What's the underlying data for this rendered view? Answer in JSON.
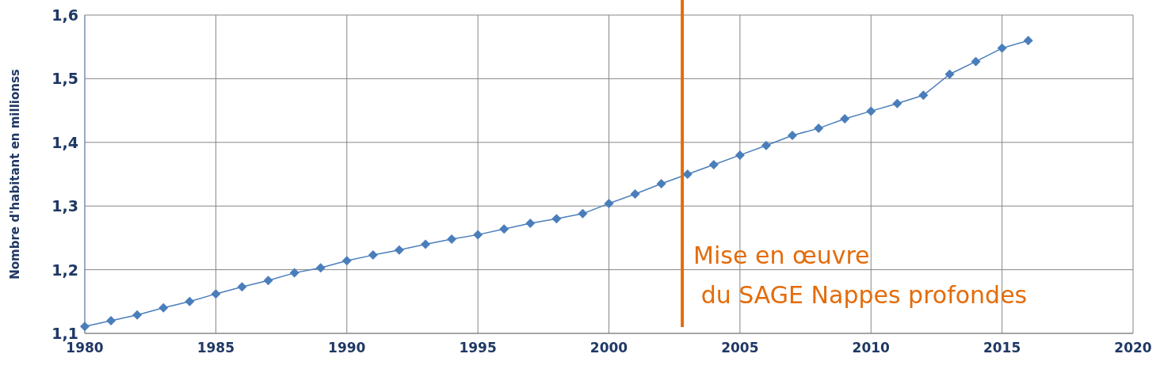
{
  "chart_data": {
    "type": "line",
    "ylabel": "Nombre d'habitant en millionss",
    "x": [
      1980,
      1981,
      1982,
      1983,
      1984,
      1985,
      1986,
      1987,
      1988,
      1989,
      1990,
      1991,
      1992,
      1993,
      1994,
      1995,
      1996,
      1997,
      1998,
      1999,
      2000,
      2001,
      2002,
      2003,
      2004,
      2005,
      2006,
      2007,
      2008,
      2009,
      2010,
      2011,
      2012,
      2013,
      2014,
      2015,
      2016
    ],
    "series": [
      {
        "color": "#4a7ebb",
        "values": [
          1.111,
          1.12,
          1.129,
          1.14,
          1.15,
          1.162,
          1.173,
          1.183,
          1.195,
          1.203,
          1.214,
          1.223,
          1.231,
          1.24,
          1.248,
          1.255,
          1.264,
          1.273,
          1.28,
          1.288,
          1.304,
          1.319,
          1.335,
          1.35,
          1.365,
          1.38,
          1.395,
          1.411,
          1.422,
          1.437,
          1.449,
          1.461,
          1.474,
          1.507,
          1.527,
          1.548,
          1.56
        ]
      }
    ],
    "xlim": [
      1980,
      2020
    ],
    "xticks": [
      1980,
      1985,
      1990,
      1995,
      2000,
      2005,
      2010,
      2015,
      2020
    ],
    "ylim": [
      1.1,
      1.6
    ],
    "yticks": [
      {
        "value": 1.1,
        "label": "1,1"
      },
      {
        "value": 1.2,
        "label": "1,2"
      },
      {
        "value": 1.3,
        "label": "1,3"
      },
      {
        "value": 1.4,
        "label": "1,4"
      },
      {
        "value": 1.5,
        "label": "1,5"
      },
      {
        "value": 1.6,
        "label": "1,6"
      }
    ],
    "ref_lines": [
      {
        "axis": "x",
        "value": 2002.8,
        "label": "Mise en œuvre\n du SAGE Nappes profondes",
        "color": "#e46c0a"
      }
    ],
    "grid": true,
    "marker": "diamond",
    "line_style": "solid"
  }
}
